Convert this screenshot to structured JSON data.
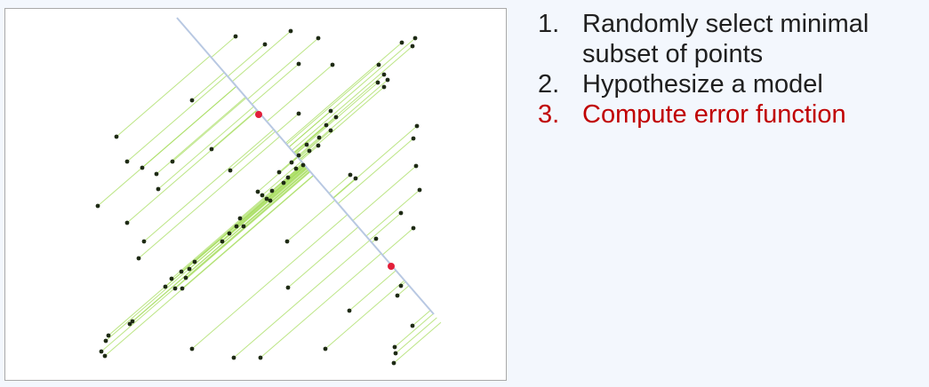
{
  "diagram": {
    "style": {
      "line_color": "#b8c8e2",
      "residual_color": "#a6dc5c",
      "point_color": "#1e2a14",
      "sample_color": "#e21f3a"
    }
  },
  "steps": [
    {
      "number": "1.",
      "text": "Randomly select minimal subset of points",
      "color": "#1f1f1f"
    },
    {
      "number": "2.",
      "text": "Hypothesize a model",
      "color": "#1f1f1f"
    },
    {
      "number": "3.",
      "text": "Compute error function",
      "color": "#c00000"
    }
  ]
}
